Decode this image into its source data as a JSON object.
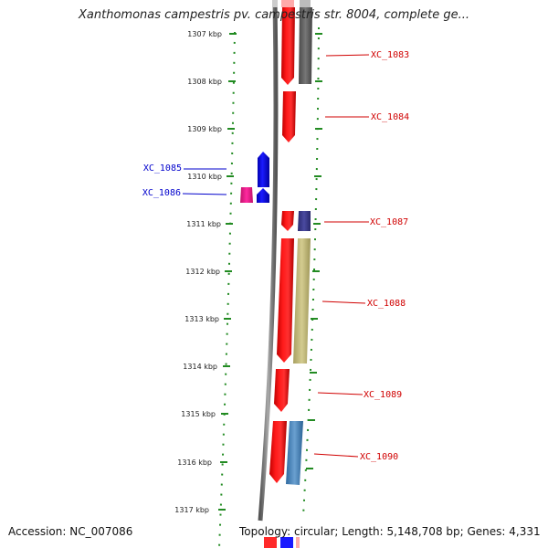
{
  "title": "Xanthomonas campestris pv. campestris str. 8004, complete ge...",
  "footer": {
    "accession": "Accession: NC_007086",
    "topology": "Topology: circular; Length: 5,148,708 bp; Genes: 4,331"
  },
  "ruler": {
    "ticks": [
      "1307 kbp",
      "1308 kbp",
      "1309 kbp",
      "1310 kbp",
      "1311 kbp",
      "1312 kbp",
      "1313 kbp",
      "1314 kbp",
      "1315 kbp",
      "1316 kbp",
      "1317 kbp"
    ]
  },
  "labels": {
    "right": [
      "XC_1083",
      "XC_1084",
      "XC_1087",
      "XC_1088",
      "XC_1089",
      "XC_1090"
    ],
    "left": [
      "XC_1085",
      "XC_1086"
    ]
  },
  "colors": {
    "cds_red": "#ff0000",
    "cds_blue": "#0000ff",
    "cds_magenta": "#ff1493",
    "backbone": "#808080",
    "grid_dots": "#228b22",
    "gene_gray": "#666666",
    "gene_navy": "#3b3b8f",
    "gene_khaki": "#c8c080",
    "gene_steelblue": "#4a86c0"
  }
}
